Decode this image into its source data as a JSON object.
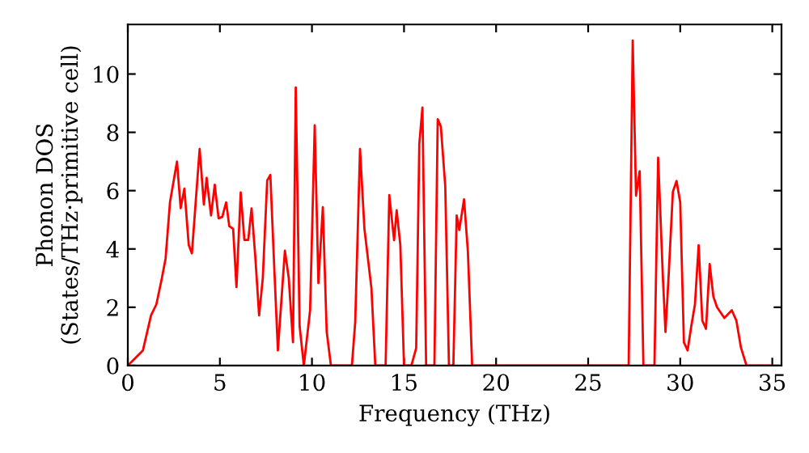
{
  "chart_data": {
    "type": "line",
    "xlabel": "Frequency (THz)",
    "ylabel": "Phonon DOS\n(States/THz·primitive cell)",
    "xlim": [
      0,
      35.5
    ],
    "ylim": [
      0,
      11.7
    ],
    "xticks": [
      0,
      5,
      10,
      15,
      20,
      25,
      30,
      35
    ],
    "yticks": [
      0,
      2,
      4,
      6,
      8,
      10
    ],
    "grid": false,
    "marker": "none",
    "line_style": "solid",
    "series": [
      {
        "color": "#ff0000",
        "x": [
          0,
          0.82,
          1.26,
          1.55,
          1.85,
          2.05,
          2.29,
          2.67,
          2.87,
          3.07,
          3.31,
          3.48,
          3.9,
          4.13,
          4.28,
          4.52,
          4.72,
          4.93,
          5.13,
          5.34,
          5.51,
          5.72,
          5.9,
          6.13,
          6.33,
          6.54,
          6.72,
          6.92,
          7.13,
          7.33,
          7.57,
          7.74,
          7.95,
          8.15,
          8.53,
          8.74,
          8.97,
          9.12,
          9.33,
          9.56,
          9.9,
          10.15,
          10.35,
          10.59,
          10.8,
          11.03,
          12.17,
          12.35,
          12.61,
          12.85,
          13.23,
          13.44,
          14.0,
          14.2,
          14.46,
          14.6,
          14.8,
          15.0,
          15.4,
          15.66,
          15.83,
          16.0,
          16.2,
          16.65,
          16.83,
          17.0,
          17.24,
          17.44,
          17.68,
          17.86,
          18.0,
          18.26,
          18.47,
          18.7,
          27.2,
          27.42,
          27.6,
          27.8,
          28.0,
          28.6,
          28.8,
          29.06,
          29.2,
          29.38,
          29.6,
          29.8,
          30.0,
          30.2,
          30.4,
          30.6,
          30.8,
          31.0,
          31.2,
          31.4,
          31.6,
          31.8,
          32.0,
          32.4,
          32.8,
          33.05,
          33.3,
          33.6,
          35.0
        ],
        "values": [
          0,
          0.52,
          1.72,
          2.1,
          3.0,
          3.67,
          5.6,
          7.0,
          5.4,
          6.07,
          4.13,
          3.85,
          7.43,
          5.52,
          6.44,
          5.15,
          6.2,
          5.05,
          5.1,
          5.6,
          4.78,
          4.69,
          2.69,
          5.94,
          4.31,
          4.31,
          5.39,
          3.76,
          1.72,
          3.0,
          6.35,
          6.54,
          3.39,
          0.52,
          3.94,
          3.0,
          0.8,
          9.54,
          1.35,
          0,
          1.9,
          8.24,
          2.83,
          5.43,
          1.17,
          0,
          0,
          1.5,
          7.43,
          4.69,
          2.65,
          0,
          0,
          5.85,
          4.3,
          5.33,
          4.13,
          0,
          0,
          0.6,
          7.6,
          8.85,
          0,
          0,
          8.45,
          8.2,
          6.15,
          0,
          0,
          5.15,
          4.65,
          5.7,
          3.9,
          0,
          0,
          11.15,
          5.83,
          6.67,
          0,
          0,
          7.13,
          3.0,
          1.15,
          3.19,
          5.96,
          6.33,
          5.6,
          0.8,
          0.52,
          1.35,
          2.1,
          4.13,
          1.54,
          1.26,
          3.48,
          2.37,
          2.0,
          1.63,
          1.9,
          1.54,
          0.61,
          0,
          0
        ]
      }
    ]
  }
}
